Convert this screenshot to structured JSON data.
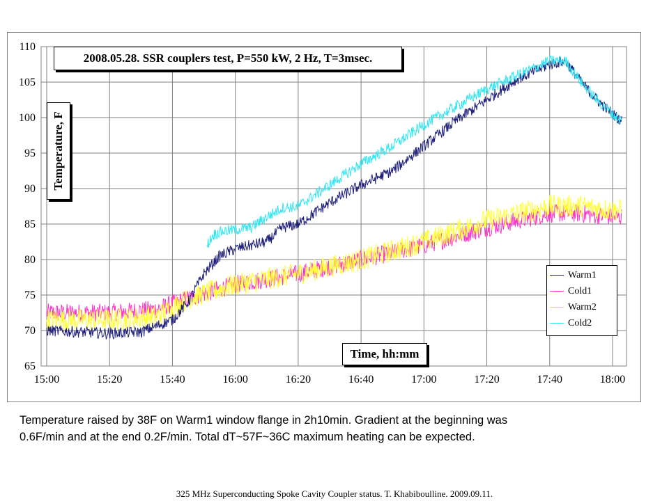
{
  "chart_data": {
    "type": "line",
    "title": "2008.05.28.  SSR couplers test, P=550 kW, 2 Hz, T=3msec.",
    "xlabel": "Time, hh:mm",
    "ylabel": "Temperature, F",
    "xlim": [
      "15:00",
      "18:05"
    ],
    "ylim": [
      65,
      110
    ],
    "y_ticks": [
      65,
      70,
      75,
      80,
      85,
      90,
      95,
      100,
      105,
      110
    ],
    "x_ticks": [
      "15:00",
      "15:20",
      "15:40",
      "16:00",
      "16:20",
      "16:40",
      "17:00",
      "17:20",
      "17:40",
      "18:00"
    ],
    "grid": true,
    "legend_position": "bottom-right",
    "series": [
      {
        "name": "Warm1",
        "color": "#1f1f7a",
        "points": [
          [
            "15:00",
            70
          ],
          [
            "15:20",
            69.6
          ],
          [
            "15:30",
            69.8
          ],
          [
            "15:40",
            71.5
          ],
          [
            "15:45",
            74
          ],
          [
            "15:50",
            78
          ],
          [
            "15:55",
            80.5
          ],
          [
            "16:00",
            81.5
          ],
          [
            "16:10",
            82.5
          ],
          [
            "16:15",
            84.5
          ],
          [
            "16:20",
            85
          ],
          [
            "16:30",
            88
          ],
          [
            "16:40",
            90.5
          ],
          [
            "16:50",
            92.5
          ],
          [
            "17:00",
            96
          ],
          [
            "17:10",
            99.5
          ],
          [
            "17:20",
            102.5
          ],
          [
            "17:30",
            105.5
          ],
          [
            "17:40",
            107.5
          ],
          [
            "17:45",
            108
          ],
          [
            "17:50",
            105
          ],
          [
            "17:55",
            102.5
          ],
          [
            "18:00",
            100.5
          ],
          [
            "18:03",
            99.5
          ]
        ]
      },
      {
        "name": "Cold1",
        "color": "#ff33cc",
        "points": [
          [
            "15:00",
            72.5
          ],
          [
            "15:20",
            72.5
          ],
          [
            "15:35",
            73
          ],
          [
            "15:45",
            74.5
          ],
          [
            "16:00",
            76.5
          ],
          [
            "16:20",
            78
          ],
          [
            "16:40",
            80
          ],
          [
            "17:00",
            82
          ],
          [
            "17:20",
            84.5
          ],
          [
            "17:40",
            86.5
          ],
          [
            "17:50",
            86.5
          ],
          [
            "18:00",
            86
          ],
          [
            "18:03",
            86
          ]
        ]
      },
      {
        "name": "Warm2",
        "color": "#ffff33",
        "points": [
          [
            "15:00",
            71.5
          ],
          [
            "15:20",
            71.5
          ],
          [
            "15:35",
            72
          ],
          [
            "15:45",
            74.5
          ],
          [
            "16:00",
            76.5
          ],
          [
            "16:20",
            78
          ],
          [
            "16:40",
            80
          ],
          [
            "17:00",
            82.5
          ],
          [
            "17:20",
            85.5
          ],
          [
            "17:40",
            87.5
          ],
          [
            "17:50",
            87.5
          ],
          [
            "18:00",
            87
          ],
          [
            "18:03",
            87
          ]
        ]
      },
      {
        "name": "Cold2",
        "color": "#33e6f2",
        "points": [
          [
            "15:51",
            82
          ],
          [
            "15:53",
            83.5
          ],
          [
            "15:56",
            84
          ],
          [
            "16:00",
            84.2
          ],
          [
            "16:05",
            84.5
          ],
          [
            "16:10",
            86
          ],
          [
            "16:15",
            87.3
          ],
          [
            "16:20",
            87.5
          ],
          [
            "16:30",
            90.5
          ],
          [
            "16:40",
            93.5
          ],
          [
            "16:50",
            96
          ],
          [
            "17:00",
            99
          ],
          [
            "17:10",
            101.5
          ],
          [
            "17:20",
            104
          ],
          [
            "17:30",
            106
          ],
          [
            "17:40",
            108
          ],
          [
            "17:45",
            108
          ],
          [
            "17:50",
            105
          ],
          [
            "17:55",
            102.5
          ],
          [
            "18:00",
            100.5
          ],
          [
            "18:03",
            99.5
          ]
        ]
      }
    ]
  },
  "caption": {
    "line1": "Temperature raised by 38F on Warm1  window flange in 2h10min. Gradient at the beginning was",
    "line2": "0.6F/min and at the end 0.2F/min. Total dT~57F~36C maximum heating can be expected."
  },
  "footer": "325 MHz Superconducting Spoke Cavity Coupler status. T. Khabiboulline. 2009.09.11."
}
